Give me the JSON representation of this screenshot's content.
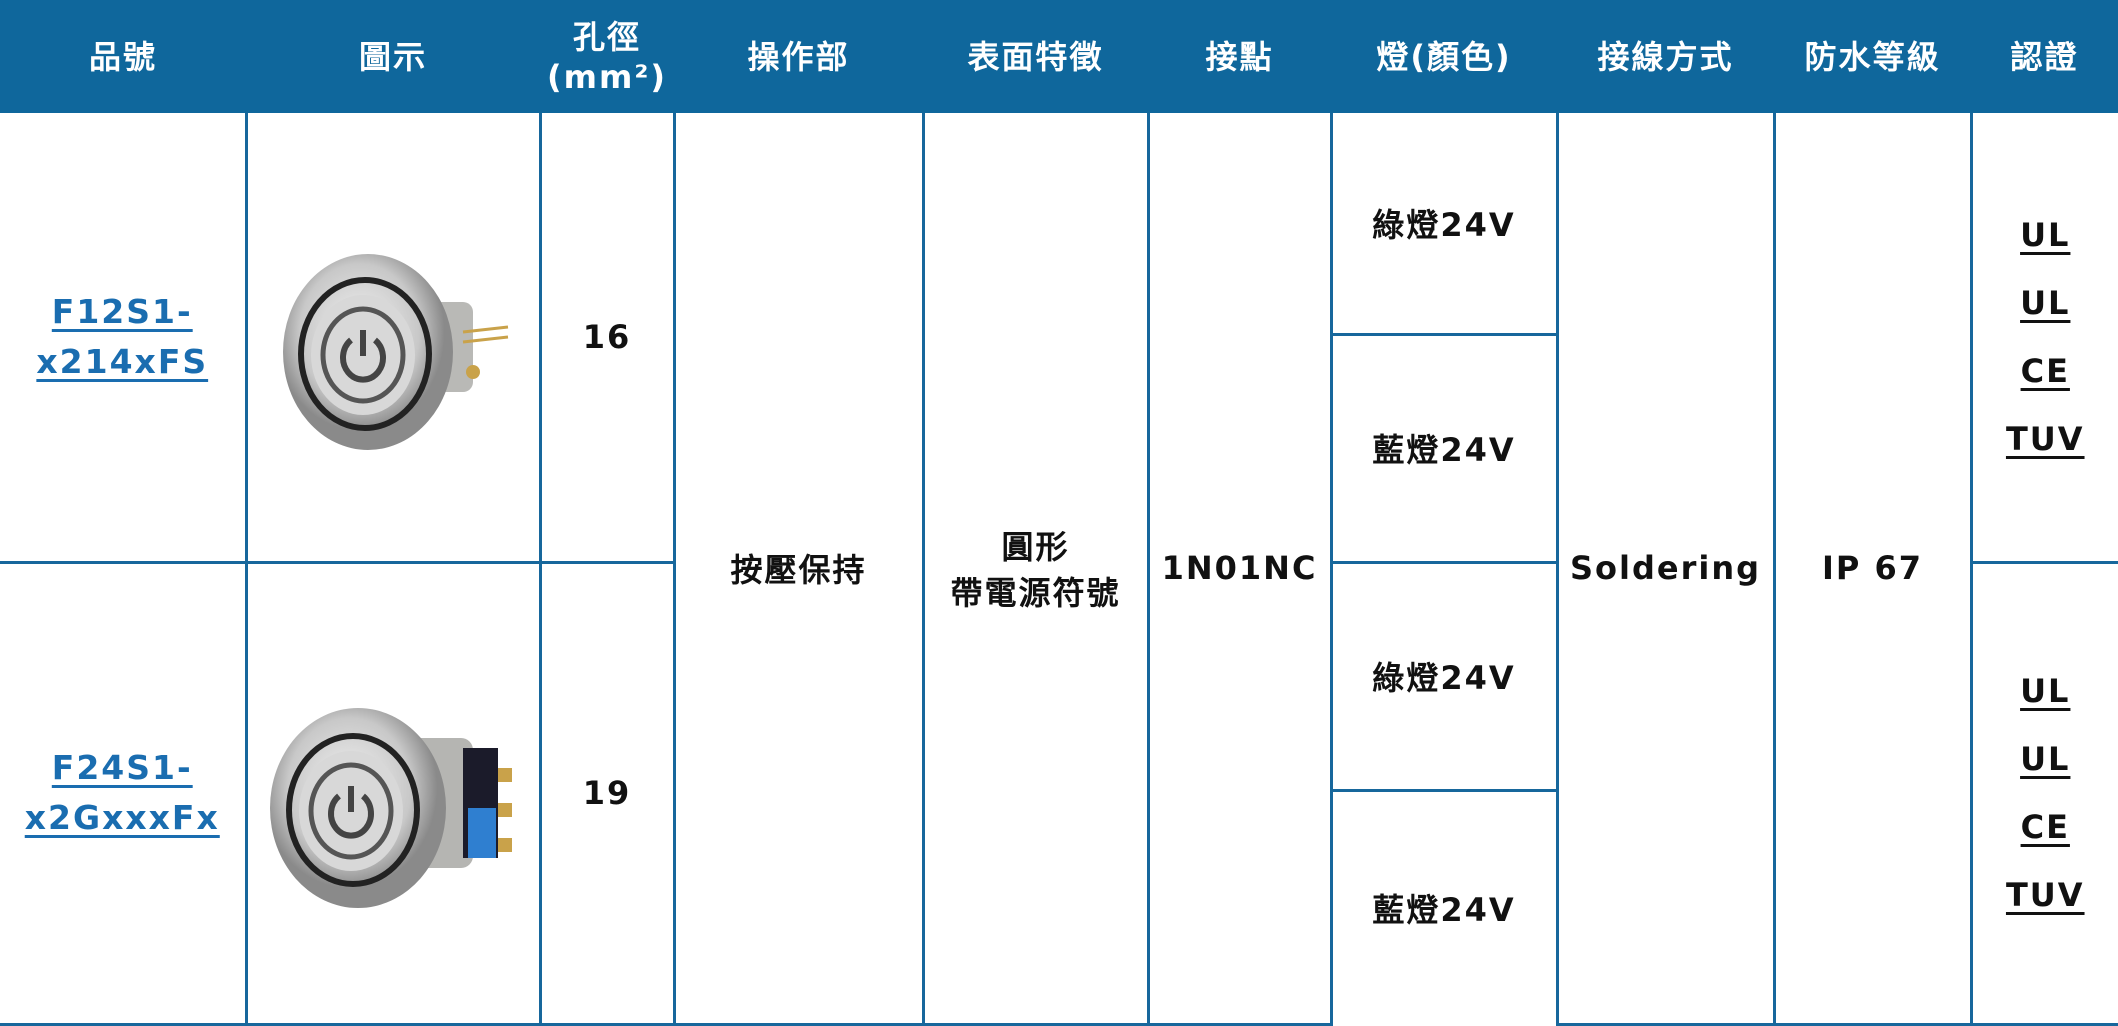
{
  "header": {
    "columns": [
      "品號",
      "圖示",
      "孔徑\n(mm²)",
      "操作部",
      "表面特徵",
      "接點",
      "燈(顏色)",
      "接線方式",
      "防水等級",
      "認證"
    ]
  },
  "shared": {
    "operation": "按壓保持",
    "surface": "圓形\n帶電源符號",
    "contact": "1N01NC",
    "wiring": "Soldering",
    "waterproof": "IP 67"
  },
  "rows": [
    {
      "part_number": "F12S1-x214xFS",
      "hole": "16",
      "lights": [
        "綠燈24V",
        "藍燈24V"
      ],
      "certifications": [
        "UL",
        "UL",
        "CE",
        "TUV"
      ]
    },
    {
      "part_number": "F24S1-x2GxxxFx",
      "hole": "19",
      "lights": [
        "綠燈24V",
        "藍燈24V"
      ],
      "certifications": [
        "UL",
        "UL",
        "CE",
        "TUV"
      ]
    }
  ]
}
